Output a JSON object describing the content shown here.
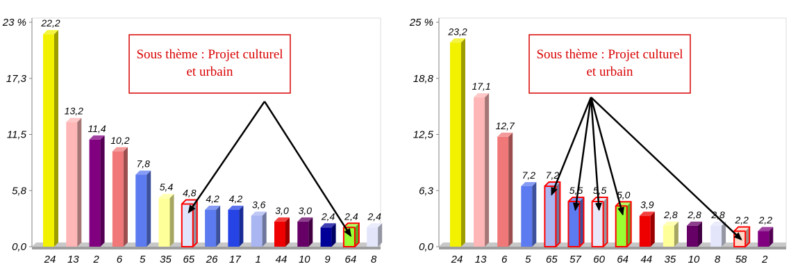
{
  "chart_data": [
    {
      "type": "bar",
      "ylim": [
        0,
        23
      ],
      "ytick_labels": [
        "0,0",
        "5,8",
        "11,5",
        "17,3",
        "23 %"
      ],
      "ytick_values": [
        0,
        5.75,
        11.5,
        17.25,
        23
      ],
      "categories": [
        "24",
        "13",
        "2",
        "6",
        "5",
        "35",
        "65",
        "26",
        "17",
        "1",
        "44",
        "10",
        "9",
        "64",
        "8"
      ],
      "values": [
        22.2,
        13.2,
        11.4,
        10.2,
        7.8,
        5.4,
        4.8,
        4.2,
        4.2,
        3.6,
        3.0,
        3.0,
        2.4,
        2.4,
        2.4
      ],
      "value_labels": [
        "22,2",
        "13,2",
        "11,4",
        "10,2",
        "7,8",
        "5,4",
        "4,8",
        "4,2",
        "4,2",
        "3,6",
        "3,0",
        "3,0",
        "2,4",
        "2,4",
        "2,4"
      ],
      "colors": [
        "#f2f200",
        "#ffb6b6",
        "#800080",
        "#f07878",
        "#5d7bf0",
        "#ffff99",
        "#dfe4fa",
        "#5d7bf0",
        "#2644e6",
        "#a9b6f2",
        "#ee0000",
        "#660066",
        "#000099",
        "#99ff33",
        "#e3e6fb"
      ],
      "highlighted": [
        "65",
        "64"
      ],
      "annotation": "Sous thème : Projet culturel et urbain",
      "annotation_lines": [
        "Sous thème : Projet culturel",
        "et urbain"
      ],
      "arrow_targets": [
        "65",
        "64"
      ],
      "grid": false
    },
    {
      "type": "bar",
      "ylim": [
        0,
        25
      ],
      "ytick_labels": [
        "0,0",
        "6,3",
        "12,5",
        "18,8",
        "25 %"
      ],
      "ytick_values": [
        0,
        6.25,
        12.5,
        18.75,
        25
      ],
      "categories": [
        "24",
        "13",
        "6",
        "5",
        "65",
        "57",
        "60",
        "64",
        "44",
        "35",
        "10",
        "8",
        "58",
        "2"
      ],
      "values": [
        23.2,
        17.1,
        12.7,
        7.2,
        7.2,
        5.5,
        5.5,
        5.0,
        3.9,
        2.8,
        2.8,
        2.8,
        2.2,
        2.2
      ],
      "value_labels": [
        "23,2",
        "17,1",
        "12,7",
        "7,2",
        "7,2",
        "5,5",
        "5,5",
        "5,0",
        "3,9",
        "2,8",
        "2,8",
        "2,8",
        "2,2",
        "2,2"
      ],
      "colors": [
        "#f2f200",
        "#ffb6b6",
        "#f07878",
        "#5d7bf0",
        "#a9b6f2",
        "#5d7bf0",
        "#e8e8f8",
        "#99ff33",
        "#ee0000",
        "#ffff99",
        "#660066",
        "#e3e6fb",
        "#ffd9c8",
        "#800080"
      ],
      "highlighted": [
        "65",
        "57",
        "60",
        "64",
        "58"
      ],
      "annotation": "Sous thème : Projet culturel et urbain",
      "annotation_lines": [
        "Sous thème : Projet culturel",
        "et urbain"
      ],
      "arrow_targets": [
        "65",
        "57",
        "60",
        "64",
        "58"
      ],
      "grid": false
    }
  ]
}
